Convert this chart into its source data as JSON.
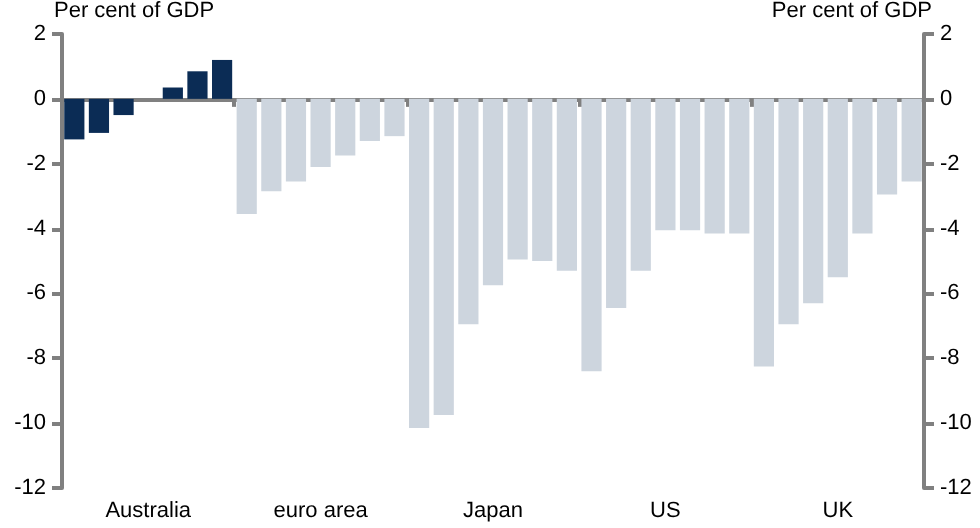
{
  "chart_data": {
    "type": "bar",
    "ylabel": "Per cent of GDP",
    "y2label": "Per cent of GDP",
    "categories": [
      null,
      null,
      null,
      "Australia",
      null,
      null,
      null,
      null,
      null,
      null,
      "euro area",
      null,
      null,
      null,
      null,
      null,
      null,
      "Japan",
      null,
      null,
      null,
      null,
      null,
      null,
      "US",
      null,
      null,
      null,
      null,
      null,
      null,
      "UK",
      null,
      null,
      null
    ],
    "values": [
      -1.25,
      -1.05,
      -0.5,
      null,
      0.35,
      0.85,
      1.2,
      -3.55,
      -2.85,
      -2.55,
      -2.1,
      -1.75,
      -1.3,
      -1.15,
      -10.15,
      -9.75,
      -6.95,
      -5.75,
      -4.95,
      -5.0,
      -5.3,
      -8.4,
      -6.45,
      -5.3,
      -4.05,
      -4.05,
      -4.15,
      -4.15,
      -8.25,
      -6.95,
      -6.3,
      -5.5,
      -4.15,
      -2.95,
      -2.55
    ],
    "colors": [
      "#0b2c55",
      "#0b2c55",
      "#0b2c55",
      "#0b2c55",
      "#0b2c55",
      "#0b2c55",
      "#0b2c55",
      "#cdd5de",
      "#cdd5de",
      "#cdd5de",
      "#cdd5de",
      "#cdd5de",
      "#cdd5de",
      "#cdd5de",
      "#cdd5de",
      "#cdd5de",
      "#cdd5de",
      "#cdd5de",
      "#cdd5de",
      "#cdd5de",
      "#cdd5de",
      "#cdd5de",
      "#cdd5de",
      "#cdd5de",
      "#cdd5de",
      "#cdd5de",
      "#cdd5de",
      "#cdd5de",
      "#cdd5de",
      "#cdd5de",
      "#cdd5de",
      "#cdd5de",
      "#cdd5de",
      "#cdd5de",
      "#cdd5de"
    ],
    "ylim": [
      -12,
      2
    ],
    "yticks": [
      -12,
      -10,
      -8,
      -6,
      -4,
      -2,
      0,
      2
    ],
    "y2lim": [
      -12,
      2
    ],
    "y2ticks": [
      -12,
      -10,
      -8,
      -6,
      -4,
      -2,
      0,
      2
    ]
  }
}
